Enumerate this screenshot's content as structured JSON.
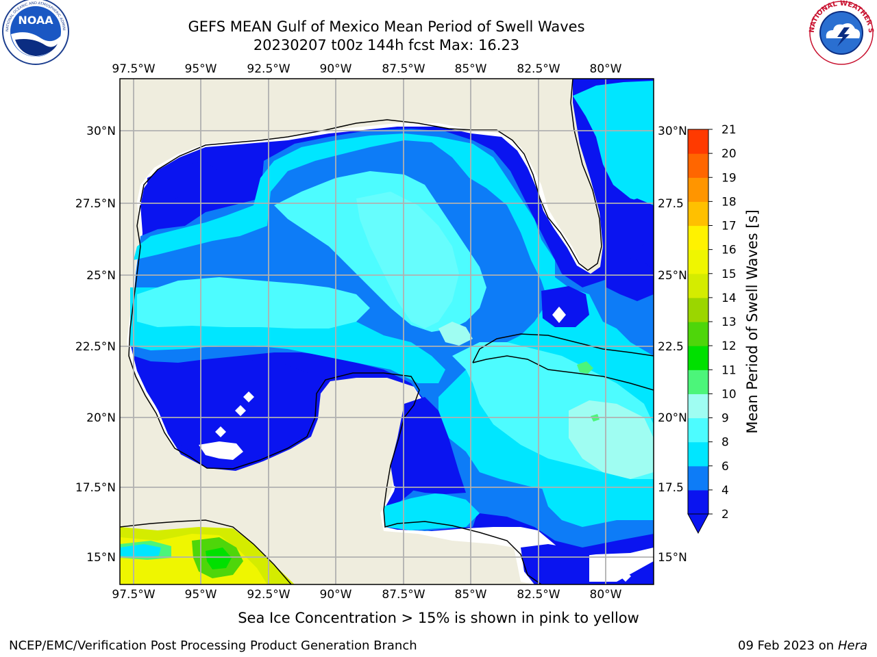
{
  "header": {
    "title_line1": "GEFS MEAN Gulf of Mexico Mean Period of Swell Waves",
    "title_line2": "20230207 t00z 144h fcst   Max: 16.23"
  },
  "logos": {
    "left": {
      "icon": "noaa-logo",
      "center_text": "NOAA",
      "ring_text": "NATIONAL OCEANIC AND ATMOSPHERIC ADMINISTRATION • U.S. DEPARTMENT OF COMMERCE"
    },
    "right": {
      "icon": "nws-logo",
      "ring_text": "NATIONAL WEATHER SERVICE"
    }
  },
  "map": {
    "lon_labels": [
      "97.5°W",
      "95°W",
      "92.5°W",
      "90°W",
      "87.5°W",
      "85°W",
      "82.5°W",
      "80°W"
    ],
    "lat_labels": [
      "30°N",
      "27.5°N",
      "25°N",
      "22.5°N",
      "20°N",
      "17.5°N",
      "15°N"
    ],
    "lat_labels_right": [
      "30°N",
      "27.5",
      "25°N",
      "22.5",
      "20°N",
      "17.5",
      "15°N"
    ],
    "land_color": "#efedde",
    "grid_color": "#b0b0b0"
  },
  "colorbar": {
    "title": "Mean Period of Swell Waves [s]",
    "ticks": [
      "2",
      "4",
      "6",
      "8",
      "9",
      "10",
      "11",
      "12",
      "13",
      "14",
      "15",
      "16",
      "17",
      "18",
      "19",
      "20",
      "21"
    ],
    "colors": [
      "#0a14f0",
      "#0d7cf7",
      "#00e6ff",
      "#4dfcff",
      "#9ffdf2",
      "#4cf57a",
      "#00e000",
      "#4ed60a",
      "#9bd600",
      "#d4ec00",
      "#eff600",
      "#fff200",
      "#ffc000",
      "#ff9500",
      "#ff6600",
      "#ff3a00",
      "#ff0c00"
    ]
  },
  "footer": {
    "note": "Sea Ice Concentration > 15% is shown in pink to yellow",
    "credit": "NCEP/EMC/Verification Post Processing Product Generation Branch",
    "date": "09 Feb 2023 on",
    "host": "Hera"
  }
}
